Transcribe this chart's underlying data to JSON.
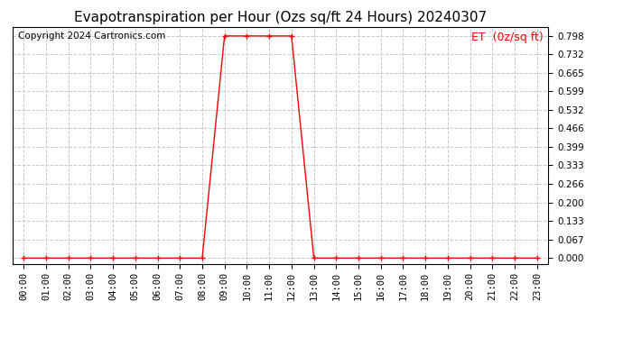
{
  "title": "Evapotranspiration per Hour (Ozs sq/ft 24 Hours) 20240307",
  "copyright_text": "Copyright 2024 Cartronics.com",
  "legend_label": "ET  (0z/sq ft)",
  "x_labels": [
    "00:00",
    "01:00",
    "02:00",
    "03:00",
    "04:00",
    "05:00",
    "06:00",
    "07:00",
    "08:00",
    "09:00",
    "10:00",
    "11:00",
    "12:00",
    "13:00",
    "14:00",
    "15:00",
    "16:00",
    "17:00",
    "18:00",
    "19:00",
    "20:00",
    "21:00",
    "22:00",
    "23:00"
  ],
  "y_values": [
    0.0,
    0.0,
    0.0,
    0.0,
    0.0,
    0.0,
    0.0,
    0.0,
    0.0,
    0.798,
    0.798,
    0.798,
    0.798,
    0.0,
    0.0,
    0.0,
    0.0,
    0.0,
    0.0,
    0.0,
    0.0,
    0.0,
    0.0,
    0.0
  ],
  "y_ticks": [
    0.0,
    0.067,
    0.133,
    0.2,
    0.266,
    0.333,
    0.399,
    0.466,
    0.532,
    0.599,
    0.665,
    0.732,
    0.798
  ],
  "ylim_min": -0.02,
  "ylim_max": 0.83,
  "line_color": "#ff0000",
  "marker": "+",
  "marker_size": 5,
  "marker_linewidth": 1.0,
  "grid_color": "#c8c8c8",
  "grid_linestyle": "--",
  "background_color": "#ffffff",
  "title_fontsize": 11,
  "tick_fontsize": 7.5,
  "legend_color": "#ff0000",
  "legend_fontsize": 9,
  "copyright_color": "#000000",
  "copyright_fontsize": 7.5
}
